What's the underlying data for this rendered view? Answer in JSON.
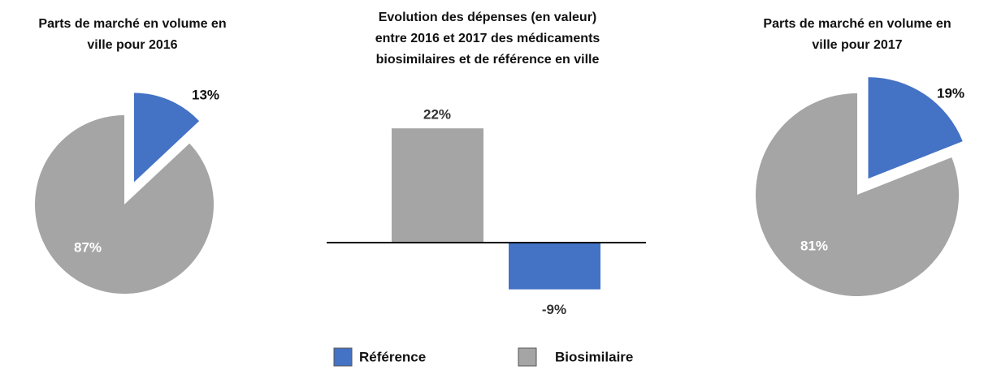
{
  "chart_data": [
    {
      "type": "pie",
      "title": [
        "Parts de marché en volume en",
        "ville pour 2016"
      ],
      "values": [
        13,
        87
      ],
      "value_labels": [
        "13%",
        "87%"
      ],
      "colors": [
        "#4472c4",
        "#a5a5a5"
      ]
    },
    {
      "type": "bar",
      "title": [
        "Evolution des dépenses (en valeur)",
        "entre 2016 et 2017 des médicaments",
        "biosimilaires et de référence en ville"
      ],
      "values": [
        22,
        -9
      ],
      "value_labels": [
        "22%",
        "-9%"
      ],
      "colors": [
        "#a5a5a5",
        "#4472c4"
      ],
      "ylim": [
        -10,
        25
      ]
    },
    {
      "type": "pie",
      "title": [
        "Parts de marché en volume en",
        "ville pour 2017"
      ],
      "values": [
        19,
        81
      ],
      "value_labels": [
        "19%",
        "81%"
      ],
      "colors": [
        "#4472c4",
        "#a5a5a5"
      ]
    }
  ],
  "legend": [
    {
      "name": "Référence",
      "color": "#4472c4"
    },
    {
      "name": "Biosimilaire",
      "color": "#a5a5a5"
    }
  ]
}
